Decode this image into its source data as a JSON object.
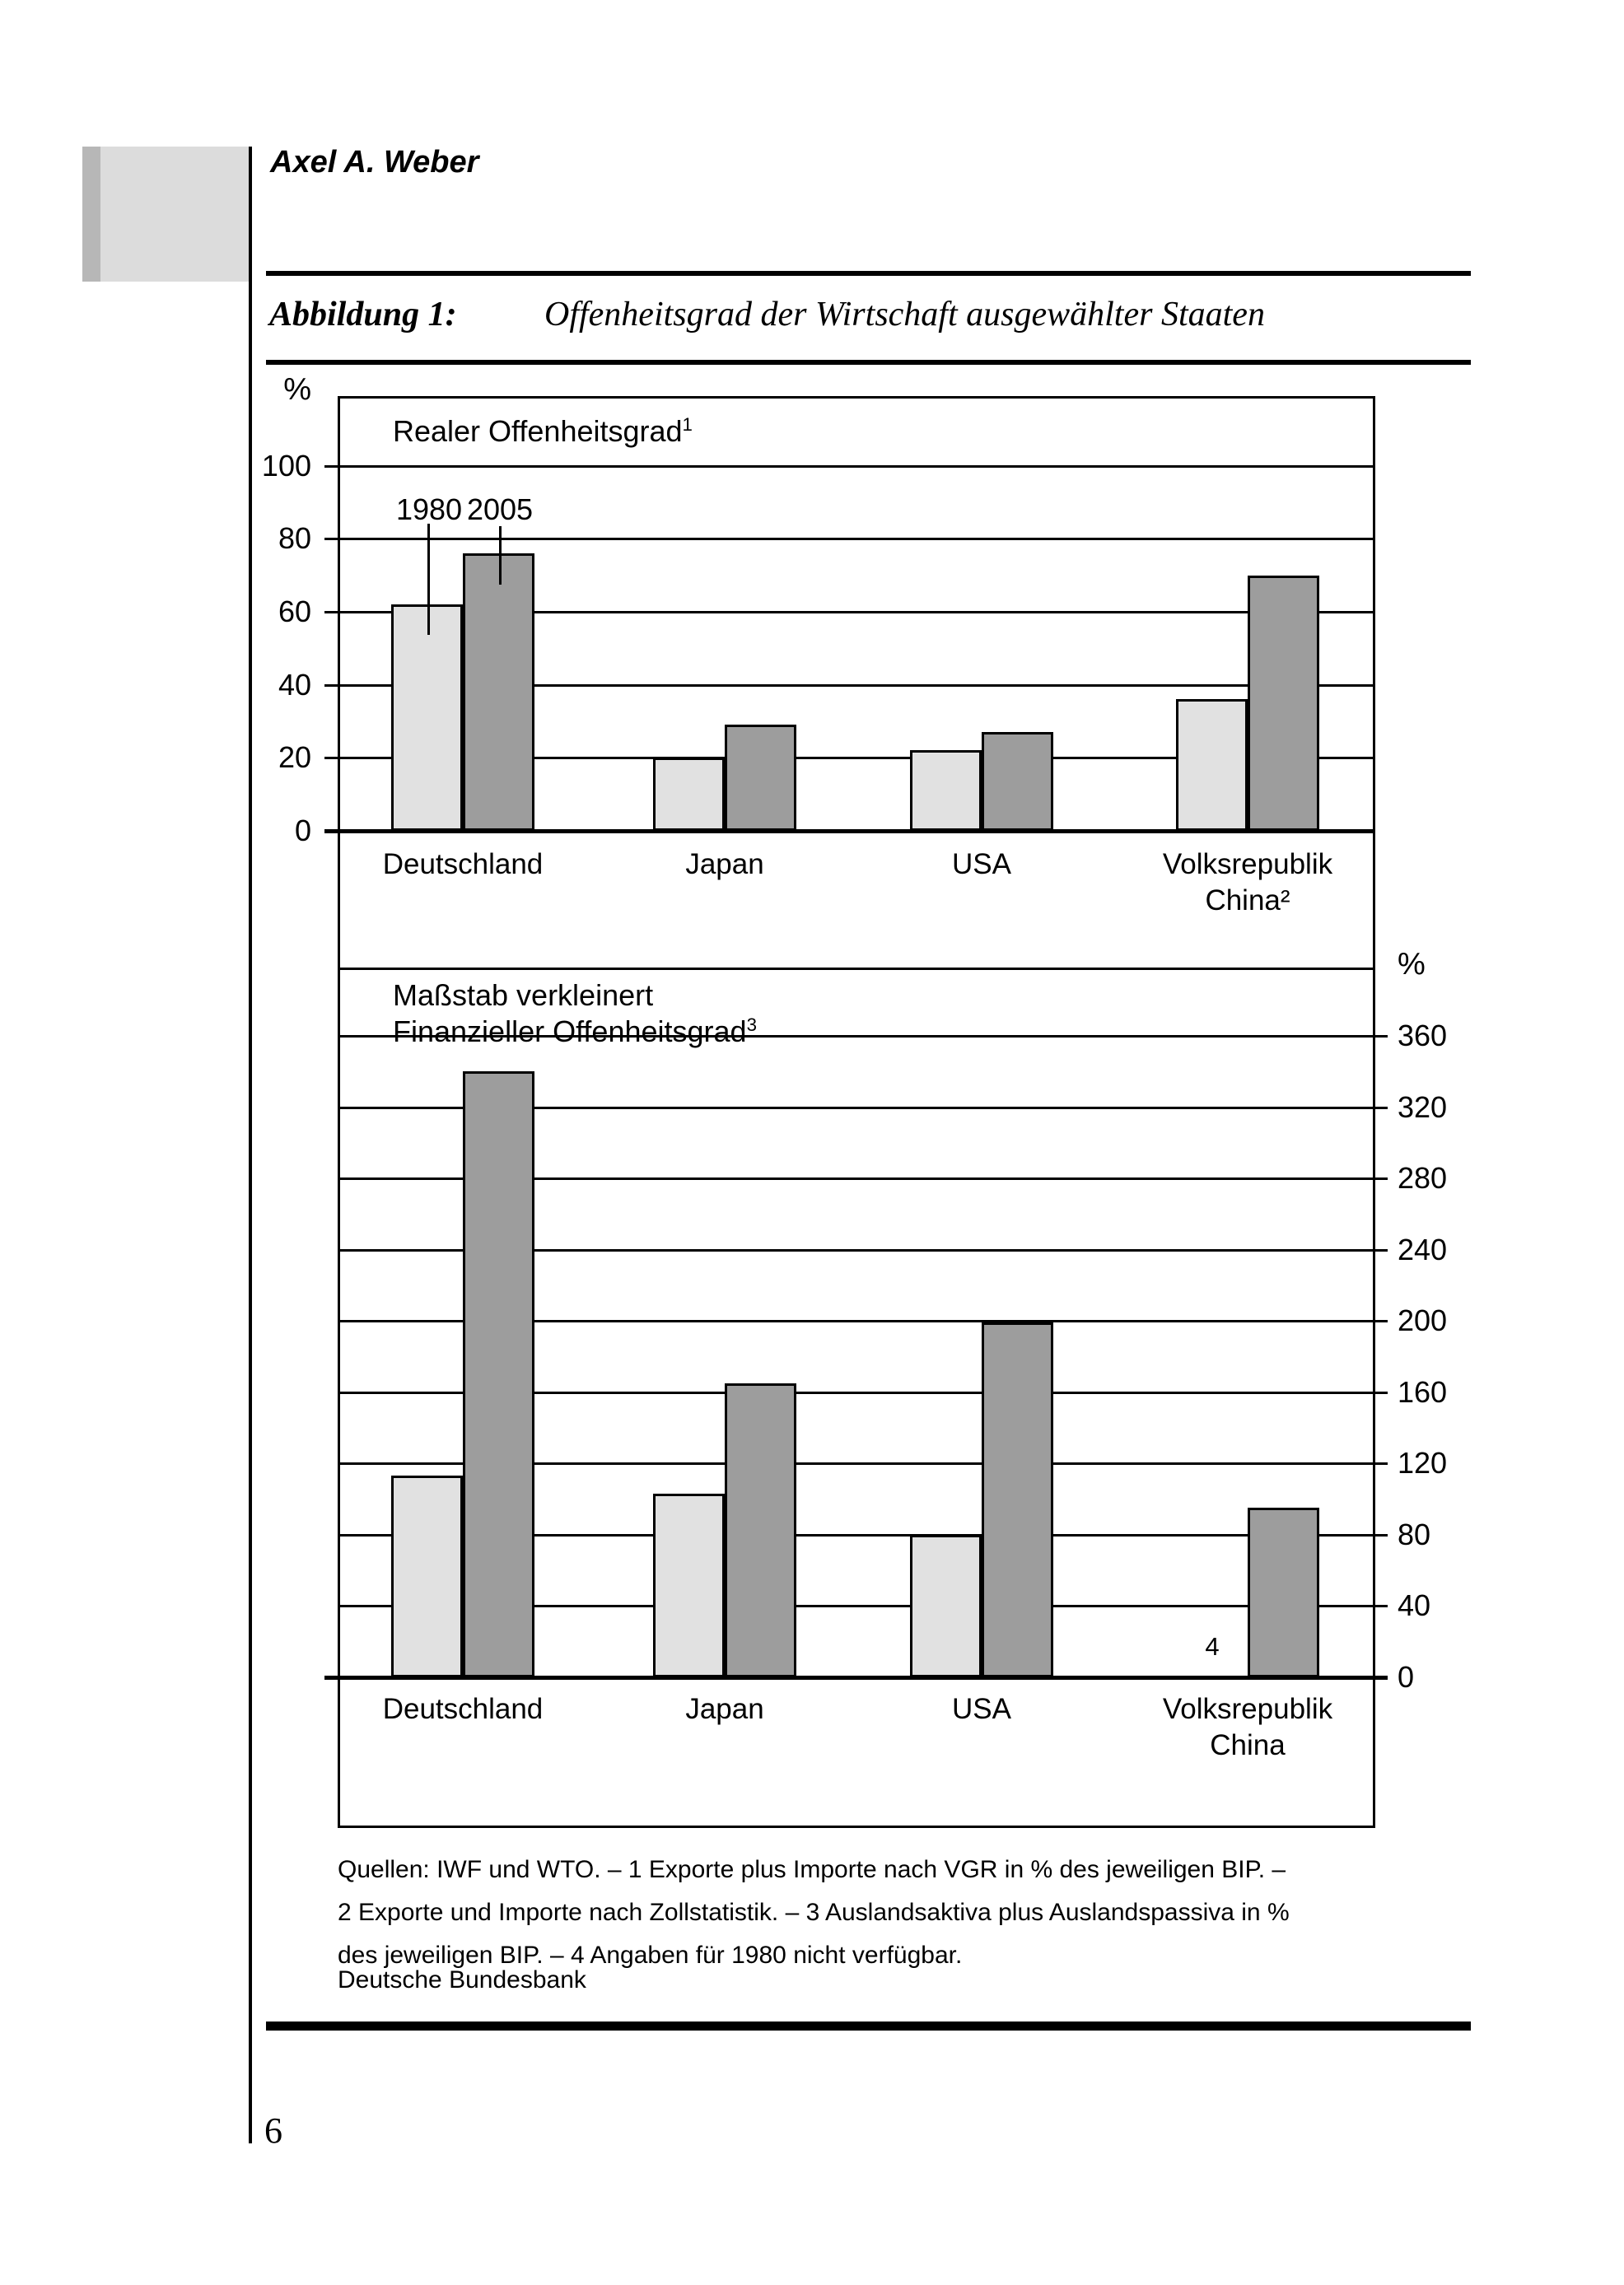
{
  "author": "Axel A. Weber",
  "page_number": "6",
  "publisher": "Deutsche Bundesbank",
  "figure": {
    "label": "Abbildung 1:",
    "title": "Offenheitsgrad der Wirtschaft ausgewählter Staaten"
  },
  "footnotes": [
    "Quellen: IWF und WTO. – 1 Exporte plus Importe nach VGR in % des jeweiligen BIP. –",
    "2 Exporte und Importe nach Zollstatistik. – 3 Auslandsaktiva plus Auslandspassiva in %",
    "des jeweiligen BIP. – 4 Angaben für 1980 nicht verfügbar."
  ],
  "colors": {
    "bar_1980": "#e1e1e1",
    "bar_2005": "#9d9d9d",
    "line": "#000000"
  },
  "chart_data": [
    {
      "type": "bar",
      "title": "Realer Offenheitsgrad",
      "title_superscript": "1",
      "unit": "%",
      "axis_side": "left",
      "ylim": [
        0,
        120
      ],
      "yticks": [
        0,
        20,
        40,
        60,
        80,
        100
      ],
      "grid": true,
      "legend": [
        "1980",
        "2005"
      ],
      "categories": [
        [
          "Deutschland"
        ],
        [
          "Japan"
        ],
        [
          "USA"
        ],
        [
          "Volksrepublik",
          "China²"
        ]
      ],
      "series": [
        {
          "name": "1980",
          "values": [
            62,
            20,
            22,
            36
          ]
        },
        {
          "name": "2005",
          "values": [
            76,
            29,
            27,
            70
          ]
        }
      ]
    },
    {
      "type": "bar",
      "title": "Maßstab verkleinert",
      "subtitle": "Finanzieller Offenheitsgrad",
      "subtitle_superscript": "3",
      "unit": "%",
      "axis_side": "right",
      "ylim": [
        0,
        400
      ],
      "yticks": [
        0,
        40,
        80,
        120,
        160,
        200,
        240,
        280,
        320,
        360
      ],
      "grid": true,
      "missing_marker": "4",
      "categories": [
        [
          "Deutschland"
        ],
        [
          "Japan"
        ],
        [
          "USA"
        ],
        [
          "Volksrepublik",
          "China"
        ]
      ],
      "series": [
        {
          "name": "1980",
          "values": [
            113,
            103,
            80,
            null
          ]
        },
        {
          "name": "2005",
          "values": [
            340,
            165,
            199,
            95
          ]
        }
      ]
    }
  ]
}
